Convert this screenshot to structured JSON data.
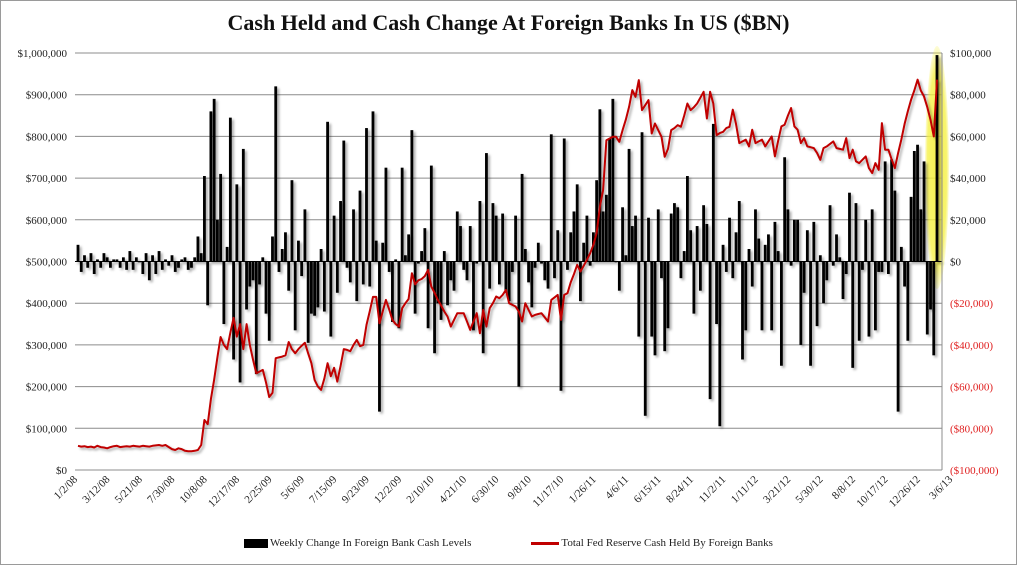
{
  "chart_data": {
    "type": "bar+line",
    "title": "Cash Held and Cash Change At Foreign Banks In US ($BN)",
    "value_unit_note": "series values in thousands",
    "left_axis": {
      "min": 0,
      "max": 1000000,
      "step": 100000,
      "tick_labels": [
        "$0",
        "$100,000",
        "$200,000",
        "$300,000",
        "$400,000",
        "$500,000",
        "$600,000",
        "$700,000",
        "$800,000",
        "$900,000",
        "$1,000,000"
      ]
    },
    "right_axis": {
      "min": -100000,
      "max": 100000,
      "step": 20000,
      "tick_labels": [
        "($100,000)",
        "($80,000)",
        "($60,000)",
        "($40,000)",
        "($20,000)",
        "$0",
        "$20,000",
        "$40,000",
        "$60,000",
        "$80,000",
        "$100,000"
      ]
    },
    "x_tick_every": 10,
    "x_tick_labels": [
      "1/2/08",
      "3/12/08",
      "5/21/08",
      "7/30/08",
      "10/8/08",
      "12/17/08",
      "2/25/09",
      "5/6/09",
      "7/15/09",
      "9/23/09",
      "12/2/09",
      "2/10/10",
      "4/21/10",
      "6/30/10",
      "9/8/10",
      "11/17/10",
      "1/26/11",
      "4/6/11",
      "6/15/11",
      "8/24/11",
      "11/2/11",
      "1/11/12",
      "3/21/12",
      "5/30/12",
      "8/8/12",
      "10/17/12",
      "12/26/12",
      "3/6/13"
    ],
    "grid": true,
    "legend_position": "bottom",
    "series": [
      {
        "name": "Weekly Change In Foreign Bank Cash Levels",
        "type": "bar",
        "axis": "right",
        "color": "#000000",
        "values": [
          8,
          -5,
          3,
          -3,
          4,
          -6,
          1,
          -3,
          4,
          2,
          -3,
          1,
          1,
          -3,
          2,
          -4,
          5,
          -4,
          2,
          0,
          -6,
          4,
          -9,
          3,
          -6,
          5,
          -4,
          1,
          -2,
          3,
          -5,
          -3,
          1,
          2,
          -4,
          -3,
          2,
          12,
          4,
          41,
          -21,
          72,
          78,
          20,
          42,
          -30,
          7,
          69,
          -47,
          37,
          -58,
          54,
          -23,
          -12,
          -9,
          -54,
          -11,
          2,
          -25,
          -38,
          12,
          84,
          -5,
          6,
          14,
          -14,
          39,
          -33,
          10,
          -7,
          25,
          -39,
          -25,
          -26,
          -22,
          6,
          -24,
          67,
          -36,
          22,
          -15,
          29,
          58,
          -3,
          -10,
          25,
          -19,
          34,
          -11,
          64,
          -12,
          72,
          10,
          -72,
          9,
          45,
          -5,
          -29,
          1,
          -32,
          45,
          3,
          13,
          63,
          -25,
          -1,
          5,
          16,
          -32,
          46,
          -44,
          -20,
          -28,
          5,
          -21,
          -9,
          -14,
          24,
          17,
          -4,
          -9,
          17,
          -33,
          -1,
          29,
          -44,
          52,
          -13,
          28,
          22,
          -11,
          23,
          -15,
          -19,
          -5,
          22,
          -60,
          42,
          6,
          -10,
          -22,
          -3,
          9,
          -1,
          -9,
          -13,
          61,
          -8,
          15,
          -62,
          59,
          -4,
          14,
          24,
          37,
          -19,
          9,
          22,
          -2,
          14,
          39,
          73,
          24,
          32,
          59,
          78,
          0,
          -14,
          26,
          3,
          54,
          17,
          22,
          -36,
          62,
          -74,
          21,
          -36,
          -45,
          25,
          -8,
          -43,
          -32,
          23,
          28,
          26,
          -8,
          5,
          41,
          15,
          -25,
          17,
          -14,
          27,
          18,
          -66,
          66,
          -30,
          -79,
          8,
          -5,
          21,
          -8,
          14,
          29,
          -47,
          -33,
          6,
          -12,
          25,
          11,
          -33,
          8,
          13,
          -33,
          19,
          5,
          -50,
          50,
          25,
          -2,
          20,
          20,
          -40,
          -15,
          15,
          -50,
          19,
          -31,
          3,
          -20,
          -9,
          27,
          -2,
          13,
          2,
          -18,
          -6,
          33,
          -51,
          28,
          -38,
          -4,
          20,
          -36,
          25,
          -33,
          -5,
          -5,
          48,
          -6,
          49,
          34,
          -72,
          7,
          -12,
          -38,
          31,
          53,
          56,
          25,
          48,
          -35,
          -23,
          -45,
          99
        ]
      },
      {
        "name": "Total Fed Reserve Cash Held By Foreign Banks",
        "type": "line",
        "axis": "left",
        "color": "#c00000",
        "values": [
          58,
          56,
          57,
          55,
          56,
          54,
          58,
          55,
          54,
          52,
          55,
          57,
          58,
          55,
          56,
          57,
          56,
          58,
          57,
          56,
          58,
          57,
          56,
          58,
          59,
          60,
          58,
          60,
          55,
          50,
          48,
          52,
          50,
          46,
          45,
          45,
          46,
          48,
          60,
          120,
          110,
          170,
          216,
          270,
          319,
          300,
          290,
          330,
          365,
          320,
          350,
          290,
          350,
          300,
          265,
          232,
          236,
          240,
          210,
          175,
          185,
          268,
          270,
          272,
          275,
          307,
          290,
          280,
          290,
          298,
          305,
          280,
          256,
          216,
          200,
          192,
          220,
          256,
          225,
          245,
          212,
          250,
          290,
          288,
          285,
          300,
          312,
          297,
          300,
          348,
          380,
          415,
          415,
          352,
          380,
          408,
          385,
          360,
          350,
          344,
          388,
          400,
          410,
          472,
          445,
          455,
          458,
          465,
          480,
          440,
          425,
          408,
          395,
          380,
          368,
          344,
          360,
          376,
          376,
          376,
          356,
          336,
          356,
          376,
          328,
          384,
          344,
          388,
          400,
          416,
          412,
          420,
          432,
          400,
          396,
          392,
          380,
          356,
          400,
          384,
          368,
          372,
          374,
          376,
          366,
          356,
          408,
          414,
          420,
          360,
          420,
          424,
          450,
          470,
          492,
          476,
          490,
          504,
          520,
          540,
          568,
          632,
          671,
          791,
          795,
          799,
          799,
          787,
          815,
          840,
          871,
          911,
          895,
          935,
          863,
          875,
          887,
          807,
          831,
          815,
          799,
          751,
          770,
          815,
          820,
          827,
          823,
          850,
          879,
          863,
          870,
          879,
          893,
          907,
          843,
          907,
          879,
          803,
          808,
          811,
          820,
          823,
          864,
          830,
          784,
          788,
          792,
          776,
          816,
          784,
          788,
          792,
          776,
          788,
          800,
          752,
          790,
          824,
          828,
          850,
          868,
          824,
          816,
          784,
          796,
          776,
          774,
          772,
          760,
          744,
          772,
          776,
          782,
          788,
          772,
          770,
          768,
          796,
          748,
          768,
          740,
          736,
          744,
          752,
          724,
          712,
          736,
          720,
          832,
          768,
          768,
          745,
          724,
          760,
          792,
          830,
          860,
          888,
          910,
          936,
          910,
          896,
          870,
          840,
          800,
          936
        ]
      }
    ],
    "annotation": "yellow highlight on most recent week",
    "highlight_color": "#f5f03c"
  }
}
